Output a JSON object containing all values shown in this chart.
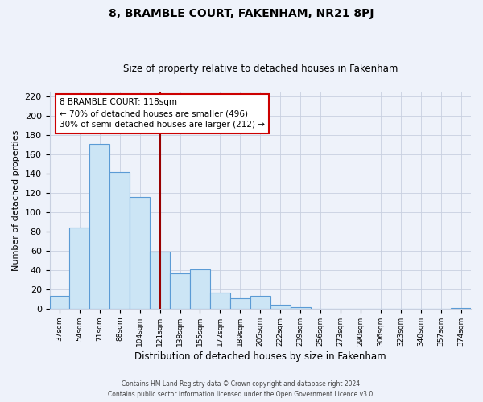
{
  "title": "8, BRAMBLE COURT, FAKENHAM, NR21 8PJ",
  "subtitle": "Size of property relative to detached houses in Fakenham",
  "xlabel": "Distribution of detached houses by size in Fakenham",
  "ylabel": "Number of detached properties",
  "footer1": "Contains HM Land Registry data © Crown copyright and database right 2024.",
  "footer2": "Contains public sector information licensed under the Open Government Licence v3.0.",
  "bar_labels": [
    "37sqm",
    "54sqm",
    "71sqm",
    "88sqm",
    "104sqm",
    "121sqm",
    "138sqm",
    "155sqm",
    "172sqm",
    "189sqm",
    "205sqm",
    "222sqm",
    "239sqm",
    "256sqm",
    "273sqm",
    "290sqm",
    "306sqm",
    "323sqm",
    "340sqm",
    "357sqm",
    "374sqm"
  ],
  "bar_values": [
    13,
    84,
    171,
    142,
    116,
    59,
    37,
    41,
    17,
    11,
    13,
    4,
    2,
    0,
    0,
    0,
    0,
    0,
    0,
    0,
    1
  ],
  "bar_color": "#cce5f5",
  "bar_edge_color": "#5b9bd5",
  "bg_color": "#eef2fa",
  "grid_color": "#c8d0e0",
  "vline_color": "#990000",
  "vline_pos": 5,
  "annotation_line1": "8 BRAMBLE COURT: 118sqm",
  "annotation_line2": "← 70% of detached houses are smaller (496)",
  "annotation_line3": "30% of semi-detached houses are larger (212) →",
  "annotation_box_facecolor": "#ffffff",
  "annotation_box_edgecolor": "#cc0000",
  "ylim": [
    0,
    225
  ],
  "yticks": [
    0,
    20,
    40,
    60,
    80,
    100,
    120,
    140,
    160,
    180,
    200,
    220
  ]
}
